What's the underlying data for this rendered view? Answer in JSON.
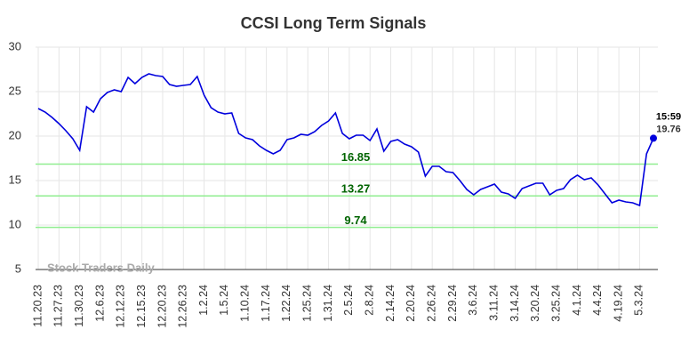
{
  "chart_data": {
    "type": "line",
    "title": "CCSI Long Term Signals",
    "categories": [
      "11.20.23",
      null,
      null,
      "11.27.23",
      null,
      null,
      "11.30.23",
      null,
      null,
      "12.6.23",
      null,
      null,
      "12.12.23",
      null,
      null,
      "12.15.23",
      null,
      null,
      "12.20.23",
      null,
      null,
      "12.26.23",
      null,
      null,
      "1.2.24",
      null,
      null,
      "1.5.24",
      null,
      null,
      "1.10.24",
      null,
      null,
      "1.17.24",
      null,
      null,
      "1.22.24",
      null,
      null,
      "1.25.24",
      null,
      null,
      "1.31.24",
      null,
      null,
      "2.5.24",
      null,
      null,
      "2.8.24",
      null,
      null,
      "2.14.24",
      null,
      null,
      "2.20.24",
      null,
      null,
      "2.26.24",
      null,
      null,
      "2.29.24",
      null,
      null,
      "3.6.24",
      null,
      null,
      "3.11.24",
      null,
      null,
      "3.14.24",
      null,
      null,
      "3.20.24",
      null,
      null,
      "3.25.24",
      null,
      null,
      "4.1.24",
      null,
      null,
      "4.4.24",
      null,
      null,
      "4.19.24",
      null,
      null,
      "5.3.24",
      null,
      null
    ],
    "values": [
      23.1,
      22.7,
      22.1,
      21.4,
      20.6,
      19.7,
      18.4,
      23.3,
      22.7,
      24.2,
      24.9,
      25.2,
      25.0,
      26.6,
      25.9,
      26.6,
      27.0,
      26.8,
      26.7,
      25.8,
      25.6,
      25.7,
      25.8,
      26.7,
      24.6,
      23.2,
      22.7,
      22.5,
      22.6,
      20.3,
      19.8,
      19.6,
      18.9,
      18.4,
      18.0,
      18.4,
      19.6,
      19.8,
      20.2,
      20.1,
      20.5,
      21.2,
      21.7,
      22.6,
      20.3,
      19.7,
      20.1,
      20.1,
      19.5,
      20.8,
      18.3,
      19.4,
      19.6,
      19.1,
      18.8,
      18.2,
      15.5,
      16.6,
      16.6,
      16.0,
      15.9,
      15.0,
      14.0,
      13.4,
      14.0,
      14.3,
      14.6,
      13.7,
      13.5,
      13.0,
      14.1,
      14.4,
      14.7,
      14.7,
      13.4,
      13.9,
      14.1,
      15.1,
      15.6,
      15.1,
      15.3,
      14.5,
      13.5,
      12.5,
      12.8,
      12.6,
      12.5,
      12.2,
      18.0,
      19.76
    ],
    "color": "#0000dd",
    "signal_levels": [
      16.85,
      13.27,
      9.74
    ],
    "signal_color": "#90ee90",
    "last_time": "15:59",
    "watermark": "Stock Traders Daily",
    "ylim": [
      5,
      30
    ],
    "yticks": [
      5,
      10,
      15,
      20,
      25,
      30
    ],
    "grid": true
  }
}
